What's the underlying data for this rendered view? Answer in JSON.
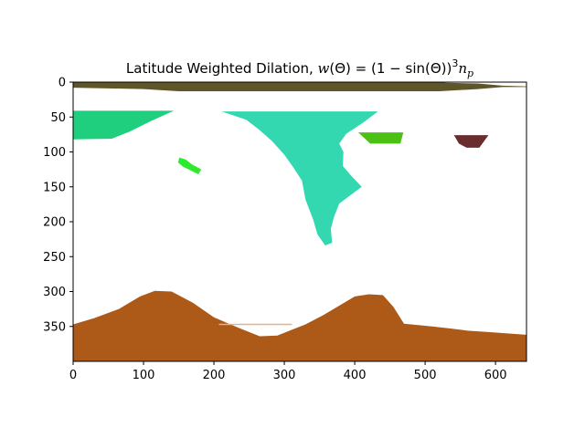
{
  "chart_data": {
    "type": "heatmap",
    "title_parts": {
      "prefix": "Latitude Weighted Dilation, ",
      "w": "w",
      "theta_open": "(Θ) = (1 − sin(Θ))",
      "exp": "3",
      "n": "n",
      "sub": "p"
    },
    "xlabel": "",
    "ylabel": "",
    "xlim": [
      0,
      644
    ],
    "ylim": [
      400,
      0
    ],
    "x_ticks": [
      0,
      100,
      200,
      300,
      400,
      500,
      600
    ],
    "y_ticks": [
      0,
      50,
      100,
      150,
      200,
      250,
      300,
      350
    ],
    "grid": false,
    "legend": "none",
    "background_color": "#ffffff",
    "regions": [
      {
        "label": "top-band",
        "color": "#5e5628",
        "points": [
          [
            0,
            0
          ],
          [
            520,
            0
          ],
          [
            530,
            1
          ],
          [
            575,
            2
          ],
          [
            610,
            5
          ],
          [
            644,
            6
          ],
          [
            644,
            7
          ],
          [
            610,
            7
          ],
          [
            575,
            10
          ],
          [
            520,
            13
          ],
          [
            150,
            13
          ],
          [
            100,
            10
          ],
          [
            50,
            9
          ],
          [
            0,
            8
          ]
        ]
      },
      {
        "label": "upper-left-patch",
        "color": "#1fcf7d",
        "points": [
          [
            0,
            41
          ],
          [
            143,
            41
          ],
          [
            110,
            56
          ],
          [
            80,
            71
          ],
          [
            55,
            81
          ],
          [
            0,
            82
          ]
        ]
      },
      {
        "label": "central-patch",
        "color": "#33d8b1",
        "points": [
          [
            211,
            42
          ],
          [
            433,
            42
          ],
          [
            412,
            58
          ],
          [
            388,
            74
          ],
          [
            378,
            88
          ],
          [
            384,
            100
          ],
          [
            383,
            120
          ],
          [
            394,
            133
          ],
          [
            410,
            150
          ],
          [
            394,
            162
          ],
          [
            378,
            174
          ],
          [
            371,
            192
          ],
          [
            366,
            210
          ],
          [
            368,
            230
          ],
          [
            358,
            234
          ],
          [
            347,
            218
          ],
          [
            341,
            197
          ],
          [
            330,
            168
          ],
          [
            325,
            141
          ],
          [
            312,
            121
          ],
          [
            300,
            104
          ],
          [
            282,
            84
          ],
          [
            264,
            68
          ],
          [
            246,
            54
          ]
        ]
      },
      {
        "label": "green-blob",
        "color": "#2dea2d",
        "points": [
          [
            151,
            108
          ],
          [
            160,
            111
          ],
          [
            169,
            118
          ],
          [
            182,
            125
          ],
          [
            178,
            132
          ],
          [
            168,
            127
          ],
          [
            156,
            121
          ],
          [
            149,
            115
          ]
        ]
      },
      {
        "label": "green-trapezoid",
        "color": "#4cc014",
        "points": [
          [
            405,
            72
          ],
          [
            469,
            72
          ],
          [
            465,
            88
          ],
          [
            422,
            88
          ]
        ]
      },
      {
        "label": "maroon-trapezoid",
        "color": "#6a2d2d",
        "points": [
          [
            541,
            76
          ],
          [
            590,
            76
          ],
          [
            577,
            94
          ],
          [
            559,
            94
          ],
          [
            548,
            88
          ]
        ]
      },
      {
        "label": "bottom-terrain",
        "color": "#ad5917",
        "points": [
          [
            0,
            347
          ],
          [
            30,
            338
          ],
          [
            65,
            325
          ],
          [
            95,
            307
          ],
          [
            116,
            299
          ],
          [
            140,
            300
          ],
          [
            170,
            316
          ],
          [
            200,
            337
          ],
          [
            235,
            352
          ],
          [
            265,
            364
          ],
          [
            290,
            363
          ],
          [
            330,
            347
          ],
          [
            355,
            334
          ],
          [
            375,
            322
          ],
          [
            400,
            307
          ],
          [
            420,
            304
          ],
          [
            440,
            305
          ],
          [
            455,
            322
          ],
          [
            470,
            346
          ],
          [
            510,
            350
          ],
          [
            536,
            353
          ],
          [
            560,
            356
          ],
          [
            590,
            358
          ],
          [
            630,
            361
          ],
          [
            644,
            362
          ],
          [
            644,
            400
          ],
          [
            0,
            400
          ]
        ]
      },
      {
        "label": "faint-line",
        "color": "#e6b08a",
        "points": [
          [
            207,
            346
          ],
          [
            311,
            346
          ],
          [
            311,
            348
          ],
          [
            207,
            348
          ]
        ]
      }
    ]
  }
}
